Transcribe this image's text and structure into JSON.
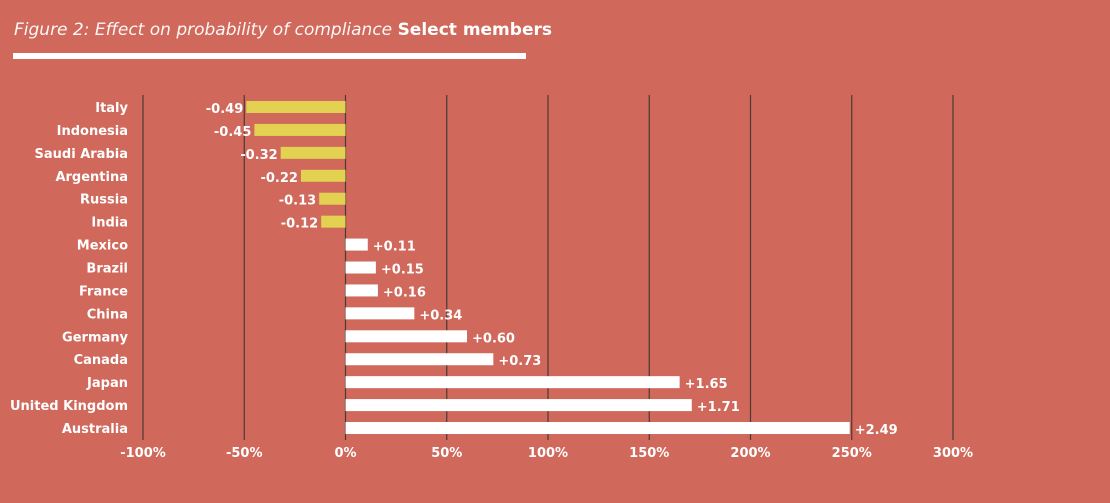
{
  "chart_data": {
    "type": "bar",
    "orientation": "horizontal",
    "title": "Figure 2: Effect on probability of compliance",
    "subtitle": "Select members",
    "categories": [
      "Italy",
      "Indonesia",
      "Saudi Arabia",
      "Argentina",
      "Russia",
      "India",
      "Mexico",
      "Brazil",
      "France",
      "China",
      "Germany",
      "Canada",
      "Japan",
      "United Kingdom",
      "Australia"
    ],
    "values": [
      -0.49,
      -0.45,
      -0.32,
      -0.22,
      -0.13,
      -0.12,
      0.11,
      0.15,
      0.16,
      0.34,
      0.6,
      0.73,
      1.65,
      1.71,
      2.49
    ],
    "value_labels": [
      "-0.49",
      "-0.45",
      "-0.32",
      "-0.22",
      "-0.13",
      "-0.12",
      "+0.11",
      "+0.15",
      "+0.16",
      "+0.34",
      "+0.60",
      "+0.73",
      "+1.65",
      "+1.71",
      "+2.49"
    ],
    "xlim": [
      -1,
      3
    ],
    "xticks": [
      -1,
      -0.5,
      0,
      0.5,
      1,
      1.5,
      2,
      2.5,
      3
    ],
    "xtick_labels": [
      "-100%",
      "-50%",
      "0%",
      "50%",
      "100%",
      "150%",
      "200%",
      "250%",
      "300%"
    ],
    "grid": "vertical",
    "colors": {
      "negative": "#e3d152",
      "positive": "#ffffff",
      "background": "#d0685b",
      "grid": "#4a3a36"
    }
  }
}
